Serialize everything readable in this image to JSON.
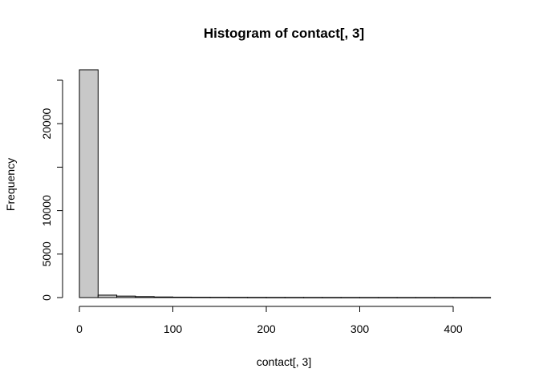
{
  "chart_data": {
    "type": "bar",
    "title": "Histogram of contact[, 3]",
    "xlabel": "contact[, 3]",
    "ylabel": "Frequency",
    "bar_color": "#c8c8c8",
    "bin_width": 20,
    "bins": [
      {
        "start": 0,
        "end": 20,
        "count": 26200
      },
      {
        "start": 20,
        "end": 40,
        "count": 280
      },
      {
        "start": 40,
        "end": 60,
        "count": 170
      },
      {
        "start": 60,
        "end": 80,
        "count": 110
      },
      {
        "start": 80,
        "end": 100,
        "count": 70
      },
      {
        "start": 100,
        "end": 120,
        "count": 50
      },
      {
        "start": 120,
        "end": 140,
        "count": 40
      },
      {
        "start": 140,
        "end": 160,
        "count": 35
      },
      {
        "start": 160,
        "end": 180,
        "count": 30
      },
      {
        "start": 180,
        "end": 200,
        "count": 25
      },
      {
        "start": 200,
        "end": 220,
        "count": 22
      },
      {
        "start": 220,
        "end": 240,
        "count": 20
      },
      {
        "start": 240,
        "end": 260,
        "count": 18
      },
      {
        "start": 260,
        "end": 280,
        "count": 16
      },
      {
        "start": 280,
        "end": 300,
        "count": 15
      },
      {
        "start": 300,
        "end": 320,
        "count": 13
      },
      {
        "start": 320,
        "end": 340,
        "count": 12
      },
      {
        "start": 340,
        "end": 360,
        "count": 10
      },
      {
        "start": 360,
        "end": 380,
        "count": 9
      },
      {
        "start": 380,
        "end": 400,
        "count": 8
      },
      {
        "start": 400,
        "end": 420,
        "count": 7
      },
      {
        "start": 420,
        "end": 440,
        "count": 6
      }
    ],
    "xlim": [
      0,
      440
    ],
    "ylim": [
      0,
      25000
    ],
    "x_ticks": [
      0,
      100,
      200,
      300,
      400
    ],
    "x_tick_labels": [
      "0",
      "100",
      "200",
      "300",
      "400"
    ],
    "y_ticks": [
      0,
      5000,
      10000,
      15000,
      20000,
      25000
    ],
    "y_tick_labels": [
      "0",
      "5000",
      "10000",
      "",
      "20000",
      ""
    ],
    "grid": false
  }
}
